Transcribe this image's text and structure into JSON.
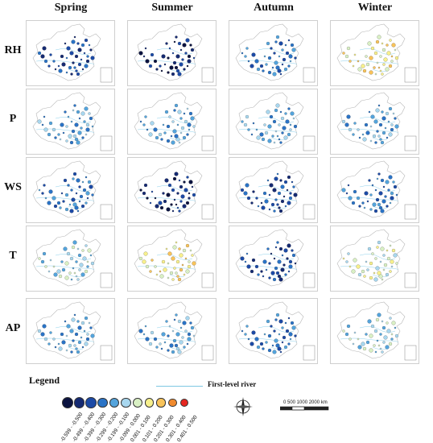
{
  "seasons": [
    "Spring",
    "Summer",
    "Autumn",
    "Winter"
  ],
  "variables": [
    "RH",
    "P",
    "WS",
    "T",
    "AP"
  ],
  "map_data": {
    "units": "correlation coefficient class",
    "dominant_class": [
      [
        2,
        1,
        3,
        7
      ],
      [
        4,
        4,
        4,
        4
      ],
      [
        3,
        1,
        2,
        3
      ],
      [
        5,
        7,
        2,
        6
      ],
      [
        4,
        4,
        3,
        5
      ]
    ]
  },
  "legend": {
    "title": "Legend",
    "river_label": "First-level river",
    "scale_text": "0  500 1000    2000      km",
    "classes": [
      {
        "label": "-0.599 - -0.500",
        "color": "#0b1340"
      },
      {
        "label": "-0.499 - -0.400",
        "color": "#152a72"
      },
      {
        "label": "-0.399 - -0.300",
        "color": "#1c4aa6"
      },
      {
        "label": "-0.299 - -0.200",
        "color": "#2a73c6"
      },
      {
        "label": "-0.199 - -0.100",
        "color": "#54a4dc"
      },
      {
        "label": "-0.099 - 0.000",
        "color": "#a8d7ef"
      },
      {
        "label": "0.001 - 0.100",
        "color": "#d9f0c4"
      },
      {
        "label": "0.101 - 0.200",
        "color": "#f7f08c"
      },
      {
        "label": "0.201 - 0.300",
        "color": "#f8c35a"
      },
      {
        "label": "0.301 - 0.400",
        "color": "#f08a2e"
      },
      {
        "label": "0.401 - 0.500",
        "color": "#e52620"
      }
    ]
  }
}
